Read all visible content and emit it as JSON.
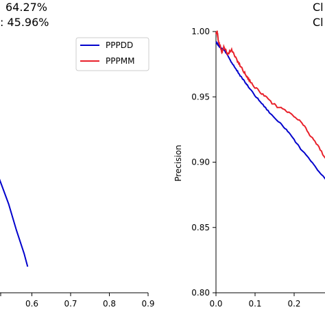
{
  "annotations": {
    "left_line1": "64.27%",
    "left_line2": ": 45.96%",
    "right_line1": "Cl",
    "right_line2": "Cl"
  },
  "colors": {
    "pppdd": "#0000cc",
    "pppmm": "#e8202a"
  },
  "chart_data": [
    {
      "type": "line",
      "title": "",
      "xlabel": "",
      "ylabel": "",
      "xlim": [
        0.5,
        0.9
      ],
      "x_ticks": [
        "0.6",
        "0.7",
        "0.8",
        "0.9"
      ],
      "legend": {
        "position": "upper-right",
        "entries": [
          "PPPDD",
          "PPPMM"
        ]
      },
      "series": [
        {
          "name": "PPPDD",
          "color": "#0000cc",
          "points": [
            [
              0.5,
              0.5
            ],
            [
              0.52,
              0.42
            ],
            [
              0.54,
              0.34
            ],
            [
              0.56,
              0.24
            ],
            [
              0.58,
              0.15
            ],
            [
              0.589,
              0.1
            ]
          ]
        }
      ]
    },
    {
      "type": "line",
      "title": "",
      "xlabel": "",
      "ylabel": "Precision",
      "xlim": [
        0.0,
        0.28
      ],
      "ylim": [
        0.8,
        1.0
      ],
      "x_ticks": [
        "0.0",
        "0.1",
        "0.2"
      ],
      "y_ticks": [
        "0.80",
        "0.85",
        "0.90",
        "0.95",
        "1.00"
      ],
      "series": [
        {
          "name": "PPPDD",
          "color": "#0000cc",
          "points": [
            [
              0.0,
              0.992
            ],
            [
              0.005,
              0.99
            ],
            [
              0.01,
              0.988
            ],
            [
              0.02,
              0.986
            ],
            [
              0.03,
              0.982
            ],
            [
              0.04,
              0.976
            ],
            [
              0.05,
              0.972
            ],
            [
              0.06,
              0.967
            ],
            [
              0.07,
              0.963
            ],
            [
              0.08,
              0.959
            ],
            [
              0.1,
              0.951
            ],
            [
              0.12,
              0.944
            ],
            [
              0.14,
              0.937
            ],
            [
              0.16,
              0.931
            ],
            [
              0.18,
              0.925
            ],
            [
              0.2,
              0.917
            ],
            [
              0.22,
              0.909
            ],
            [
              0.24,
              0.902
            ],
            [
              0.26,
              0.894
            ],
            [
              0.28,
              0.887
            ]
          ]
        },
        {
          "name": "PPPMM",
          "color": "#e8202a",
          "points": [
            [
              0.0,
              0.998
            ],
            [
              0.003,
              1.0
            ],
            [
              0.006,
              0.993
            ],
            [
              0.01,
              0.99
            ],
            [
              0.015,
              0.984
            ],
            [
              0.02,
              0.988
            ],
            [
              0.03,
              0.983
            ],
            [
              0.04,
              0.986
            ],
            [
              0.05,
              0.98
            ],
            [
              0.06,
              0.975
            ],
            [
              0.07,
              0.97
            ],
            [
              0.08,
              0.965
            ],
            [
              0.09,
              0.961
            ],
            [
              0.1,
              0.957
            ],
            [
              0.12,
              0.952
            ],
            [
              0.14,
              0.946
            ],
            [
              0.16,
              0.942
            ],
            [
              0.18,
              0.939
            ],
            [
              0.2,
              0.935
            ],
            [
              0.22,
              0.93
            ],
            [
              0.24,
              0.921
            ],
            [
              0.26,
              0.913
            ],
            [
              0.28,
              0.903
            ]
          ]
        }
      ]
    }
  ]
}
